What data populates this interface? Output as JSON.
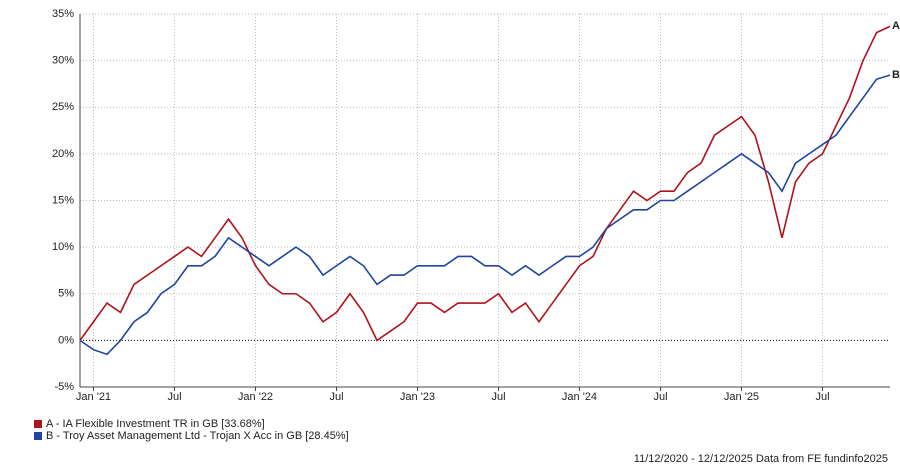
{
  "chart_data": {
    "type": "line",
    "x": [
      "2020-12",
      "2021-01",
      "2021-02",
      "2021-03",
      "2021-04",
      "2021-05",
      "2021-06",
      "2021-07",
      "2021-08",
      "2021-09",
      "2021-10",
      "2021-11",
      "2021-12",
      "2022-01",
      "2022-02",
      "2022-03",
      "2022-04",
      "2022-05",
      "2022-06",
      "2022-07",
      "2022-08",
      "2022-09",
      "2022-10",
      "2022-11",
      "2022-12",
      "2023-01",
      "2023-02",
      "2023-03",
      "2023-04",
      "2023-05",
      "2023-06",
      "2023-07",
      "2023-08",
      "2023-09",
      "2023-10",
      "2023-11",
      "2023-12",
      "2024-01",
      "2024-02",
      "2024-03",
      "2024-04",
      "2024-05",
      "2024-06",
      "2024-07",
      "2024-08",
      "2024-09",
      "2024-10",
      "2024-11",
      "2024-12",
      "2025-01",
      "2025-02",
      "2025-03",
      "2025-04",
      "2025-05",
      "2025-06",
      "2025-07",
      "2025-08",
      "2025-09",
      "2025-10",
      "2025-11",
      "2025-12"
    ],
    "series": [
      {
        "name": "A - IA Flexible Investment TR in GB [33.68%]",
        "end_label": "A",
        "color": "#b0121b",
        "values": [
          0,
          2,
          4,
          3,
          6,
          7,
          8,
          9,
          10,
          9,
          11,
          13,
          11,
          8,
          6,
          5,
          5,
          4,
          2,
          3,
          5,
          3,
          0,
          1,
          2,
          4,
          4,
          3,
          4,
          4,
          4,
          5,
          3,
          4,
          2,
          4,
          6,
          8,
          9,
          12,
          14,
          16,
          15,
          16,
          16,
          18,
          19,
          22,
          23,
          24,
          22,
          17,
          11,
          17,
          19,
          20,
          23,
          26,
          30,
          33,
          33.68
        ]
      },
      {
        "name": "B - Troy Asset Management Ltd - Trojan X Acc in GB [28.45%]",
        "end_label": "B",
        "color": "#1f45a0",
        "values": [
          0,
          -1,
          -1.5,
          0,
          2,
          3,
          5,
          6,
          8,
          8,
          9,
          11,
          10,
          9,
          8,
          9,
          10,
          9,
          7,
          8,
          9,
          8,
          6,
          7,
          7,
          8,
          8,
          8,
          9,
          9,
          8,
          8,
          7,
          8,
          7,
          8,
          9,
          9,
          10,
          12,
          13,
          14,
          14,
          15,
          15,
          16,
          17,
          18,
          19,
          20,
          19,
          18,
          16,
          19,
          20,
          21,
          22,
          24,
          26,
          28,
          28.45
        ]
      }
    ],
    "xlim": [
      "2020-12",
      "2025-12"
    ],
    "xticks": [
      {
        "value": "2021-01",
        "label": "Jan '21"
      },
      {
        "value": "2021-07",
        "label": "Jul"
      },
      {
        "value": "2022-01",
        "label": "Jan '22"
      },
      {
        "value": "2022-07",
        "label": "Jul"
      },
      {
        "value": "2023-01",
        "label": "Jan '23"
      },
      {
        "value": "2023-07",
        "label": "Jul"
      },
      {
        "value": "2024-01",
        "label": "Jan '24"
      },
      {
        "value": "2024-07",
        "label": "Jul"
      },
      {
        "value": "2025-01",
        "label": "Jan '25"
      },
      {
        "value": "2025-07",
        "label": "Jul"
      }
    ],
    "ylim": [
      -5,
      35
    ],
    "yticks": [
      {
        "value": -5,
        "label": "-5%"
      },
      {
        "value": 0,
        "label": "0%"
      },
      {
        "value": 5,
        "label": "5%"
      },
      {
        "value": 10,
        "label": "10%"
      },
      {
        "value": 15,
        "label": "15%"
      },
      {
        "value": 20,
        "label": "20%"
      },
      {
        "value": 25,
        "label": "25%"
      },
      {
        "value": 30,
        "label": "30%"
      },
      {
        "value": 35,
        "label": "35%"
      }
    ],
    "grid": true,
    "footer": "11/12/2020 - 12/12/2025 Data from FE fundinfo2025"
  }
}
